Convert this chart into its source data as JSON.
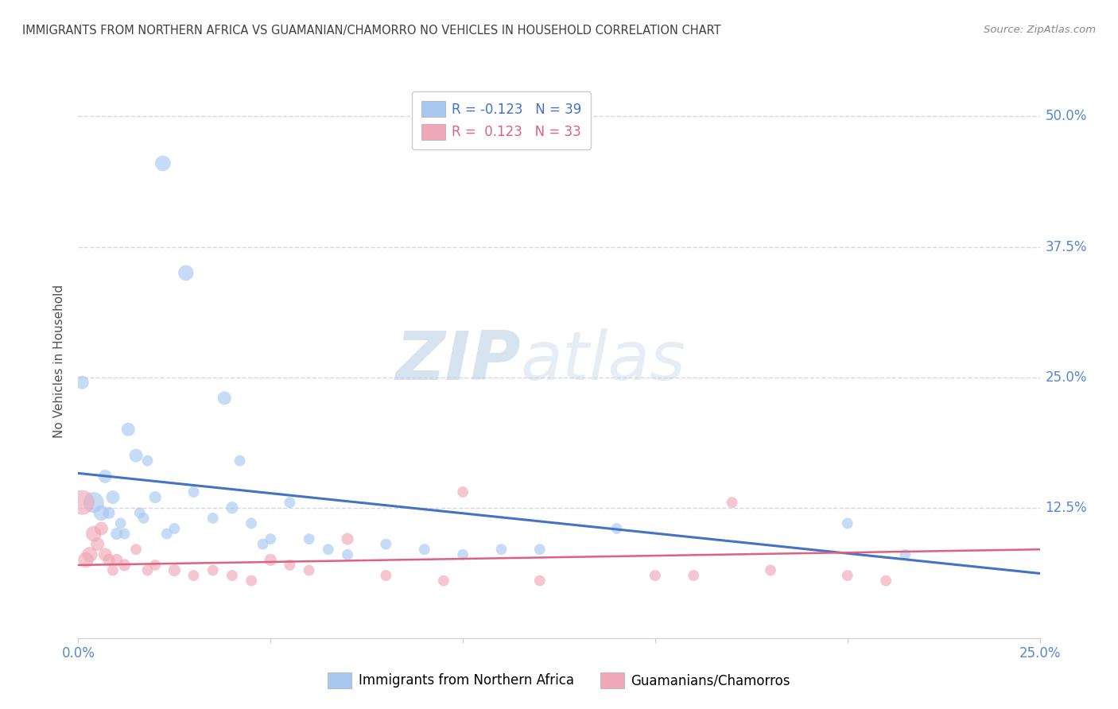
{
  "title": "IMMIGRANTS FROM NORTHERN AFRICA VS GUAMANIAN/CHAMORRO NO VEHICLES IN HOUSEHOLD CORRELATION CHART",
  "source": "Source: ZipAtlas.com",
  "ylabel": "No Vehicles in Household",
  "right_yticks": [
    "50.0%",
    "37.5%",
    "25.0%",
    "12.5%"
  ],
  "right_ytick_vals": [
    0.5,
    0.375,
    0.25,
    0.125
  ],
  "xlim": [
    0.0,
    0.25
  ],
  "ylim": [
    0.0,
    0.53
  ],
  "legend_blue_R": "-0.123",
  "legend_blue_N": "39",
  "legend_pink_R": "0.123",
  "legend_pink_N": "33",
  "blue_color": "#a8c8f0",
  "pink_color": "#f0a8b8",
  "trend_blue": "#4472c4",
  "trend_pink": "#e06080",
  "watermark_zip": "ZIP",
  "watermark_atlas": "atlas",
  "blue_label": "Immigrants from Northern Africa",
  "pink_label": "Guamanians/Chamorros",
  "blue_points_x": [
    0.001,
    0.004,
    0.006,
    0.007,
    0.008,
    0.009,
    0.01,
    0.011,
    0.012,
    0.013,
    0.015,
    0.016,
    0.017,
    0.018,
    0.02,
    0.022,
    0.023,
    0.025,
    0.028,
    0.03,
    0.035,
    0.038,
    0.04,
    0.042,
    0.045,
    0.048,
    0.05,
    0.055,
    0.06,
    0.065,
    0.07,
    0.08,
    0.09,
    0.1,
    0.11,
    0.12,
    0.14,
    0.2,
    0.215
  ],
  "blue_points_y": [
    0.245,
    0.13,
    0.12,
    0.155,
    0.12,
    0.135,
    0.1,
    0.11,
    0.1,
    0.2,
    0.175,
    0.12,
    0.115,
    0.17,
    0.135,
    0.455,
    0.1,
    0.105,
    0.35,
    0.14,
    0.115,
    0.23,
    0.125,
    0.17,
    0.11,
    0.09,
    0.095,
    0.13,
    0.095,
    0.085,
    0.08,
    0.09,
    0.085,
    0.08,
    0.085,
    0.085,
    0.105,
    0.11,
    0.08
  ],
  "blue_sizes": [
    150,
    350,
    200,
    150,
    120,
    150,
    120,
    100,
    100,
    150,
    150,
    100,
    100,
    100,
    120,
    200,
    100,
    100,
    200,
    100,
    100,
    150,
    120,
    100,
    100,
    100,
    100,
    100,
    100,
    100,
    100,
    100,
    100,
    100,
    100,
    100,
    100,
    100,
    100
  ],
  "pink_points_x": [
    0.001,
    0.002,
    0.003,
    0.004,
    0.005,
    0.006,
    0.007,
    0.008,
    0.009,
    0.01,
    0.012,
    0.015,
    0.018,
    0.02,
    0.025,
    0.03,
    0.035,
    0.04,
    0.045,
    0.05,
    0.055,
    0.06,
    0.07,
    0.08,
    0.095,
    0.1,
    0.12,
    0.15,
    0.16,
    0.17,
    0.18,
    0.2,
    0.21
  ],
  "pink_points_y": [
    0.13,
    0.075,
    0.08,
    0.1,
    0.09,
    0.105,
    0.08,
    0.075,
    0.065,
    0.075,
    0.07,
    0.085,
    0.065,
    0.07,
    0.065,
    0.06,
    0.065,
    0.06,
    0.055,
    0.075,
    0.07,
    0.065,
    0.095,
    0.06,
    0.055,
    0.14,
    0.055,
    0.06,
    0.06,
    0.13,
    0.065,
    0.06,
    0.055
  ],
  "pink_sizes": [
    500,
    200,
    200,
    200,
    150,
    150,
    150,
    120,
    100,
    120,
    120,
    100,
    100,
    100,
    120,
    100,
    100,
    100,
    100,
    120,
    100,
    100,
    120,
    100,
    100,
    100,
    100,
    100,
    100,
    100,
    100,
    100,
    100
  ],
  "blue_trend_x": [
    0.0,
    0.25
  ],
  "blue_trend_y": [
    0.158,
    0.062
  ],
  "pink_trend_x": [
    0.0,
    0.25
  ],
  "pink_trend_y": [
    0.07,
    0.085
  ],
  "grid_color": "#d0d8ee",
  "title_color": "#404040",
  "axis_label_color": "#5588cc",
  "ylabel_color": "#505050",
  "background_color": "#ffffff"
}
